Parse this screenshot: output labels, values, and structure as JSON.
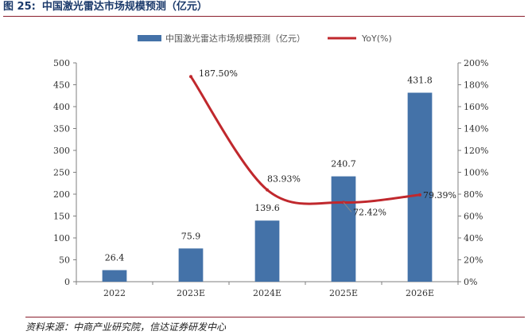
{
  "figure": {
    "number": "图 25:",
    "title": "中国激光雷达市场规模预测（亿元）",
    "source": "资料来源：中商产业研究院，信达证券研发中心"
  },
  "colors": {
    "bar": "#4472a8",
    "line": "#c0282d",
    "axis": "#7f7f7f"
  },
  "chart_data": {
    "type": "bar",
    "categories": [
      "2022",
      "2023E",
      "2024E",
      "2025E",
      "2026E"
    ],
    "series": [
      {
        "name": "中国激光雷达市场规模预测（亿元）",
        "type": "bar",
        "axis": "left",
        "values": [
          26.4,
          75.9,
          139.6,
          240.7,
          431.8
        ],
        "labels": [
          "26.4",
          "75.9",
          "139.6",
          "240.7",
          "431.8"
        ]
      },
      {
        "name": "YoY(%)",
        "type": "line",
        "axis": "right",
        "smooth": true,
        "values": [
          null,
          187.5,
          83.93,
          72.42,
          79.39
        ],
        "labels": [
          "",
          "187.50%",
          "83.93%",
          "72.42%",
          "79.39%"
        ]
      }
    ],
    "y_left": {
      "lim": [
        0,
        500
      ],
      "ticks": [
        "0",
        "50",
        "100",
        "150",
        "200",
        "250",
        "300",
        "350",
        "400",
        "450",
        "500"
      ]
    },
    "y_right": {
      "lim": [
        0,
        200
      ],
      "ticks": [
        "0%",
        "20%",
        "40%",
        "60%",
        "80%",
        "100%",
        "120%",
        "140%",
        "160%",
        "180%",
        "200%"
      ]
    },
    "legend": "top-center",
    "grid": false
  }
}
